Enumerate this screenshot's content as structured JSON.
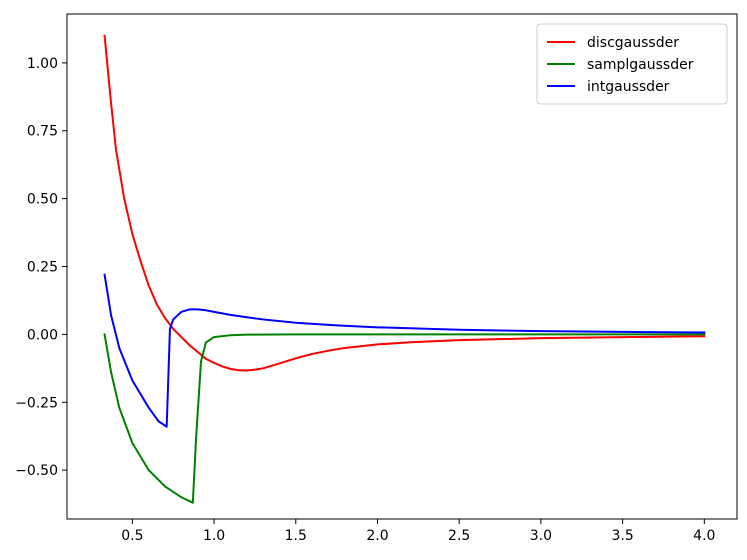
{
  "chart_data": {
    "type": "line",
    "title": "",
    "xlabel": "",
    "ylabel": "",
    "xlim": [
      0.1,
      4.2
    ],
    "ylim": [
      -0.68,
      1.18
    ],
    "xticks": [
      0.5,
      1.0,
      1.5,
      2.0,
      2.5,
      3.0,
      3.5,
      4.0
    ],
    "xtick_labels": [
      "0.5",
      "1.0",
      "1.5",
      "2.0",
      "2.5",
      "3.0",
      "3.5",
      "4.0"
    ],
    "yticks": [
      -0.5,
      -0.25,
      0.0,
      0.25,
      0.5,
      0.75,
      1.0
    ],
    "ytick_labels": [
      "−0.50",
      "−0.25",
      "0.00",
      "0.25",
      "0.50",
      "0.75",
      "1.00"
    ],
    "grid": false,
    "legend_position": "top-right",
    "series": [
      {
        "name": "discgaussder",
        "color": "#ff0000",
        "x": [
          0.33,
          0.37,
          0.4,
          0.45,
          0.5,
          0.55,
          0.6,
          0.65,
          0.7,
          0.75,
          0.8,
          0.85,
          0.9,
          0.95,
          1.0,
          1.05,
          1.1,
          1.15,
          1.2,
          1.25,
          1.3,
          1.4,
          1.5,
          1.6,
          1.7,
          1.8,
          2.0,
          2.2,
          2.5,
          3.0,
          3.5,
          4.0
        ],
        "y": [
          1.1,
          0.85,
          0.68,
          0.5,
          0.37,
          0.27,
          0.18,
          0.11,
          0.06,
          0.02,
          -0.01,
          -0.04,
          -0.065,
          -0.09,
          -0.105,
          -0.118,
          -0.127,
          -0.132,
          -0.133,
          -0.13,
          -0.125,
          -0.107,
          -0.088,
          -0.072,
          -0.06,
          -0.05,
          -0.037,
          -0.029,
          -0.021,
          -0.014,
          -0.01,
          -0.007
        ]
      },
      {
        "name": "samplgaussder",
        "color": "#008000",
        "x": [
          0.33,
          0.37,
          0.42,
          0.5,
          0.6,
          0.7,
          0.8,
          0.87,
          0.89,
          0.92,
          0.95,
          1.0,
          1.1,
          1.2,
          1.5,
          2.0,
          3.0,
          4.0
        ],
        "y": [
          0.0,
          -0.14,
          -0.27,
          -0.4,
          -0.5,
          -0.56,
          -0.6,
          -0.62,
          -0.38,
          -0.1,
          -0.03,
          -0.01,
          -0.003,
          -0.001,
          0.0,
          0.0,
          0.0,
          0.0
        ],
        "step_at_index": 8
      },
      {
        "name": "intgaussder",
        "color": "#0000ff",
        "x": [
          0.33,
          0.37,
          0.42,
          0.5,
          0.6,
          0.66,
          0.71,
          0.73,
          0.75,
          0.8,
          0.85,
          0.9,
          0.95,
          1.0,
          1.1,
          1.2,
          1.3,
          1.5,
          1.75,
          2.0,
          2.5,
          3.0,
          3.5,
          4.0
        ],
        "y": [
          0.22,
          0.07,
          -0.05,
          -0.17,
          -0.27,
          -0.32,
          -0.34,
          0.02,
          0.055,
          0.083,
          0.092,
          0.092,
          0.089,
          0.083,
          0.072,
          0.063,
          0.055,
          0.043,
          0.033,
          0.026,
          0.017,
          0.012,
          0.009,
          0.007
        ]
      }
    ]
  }
}
